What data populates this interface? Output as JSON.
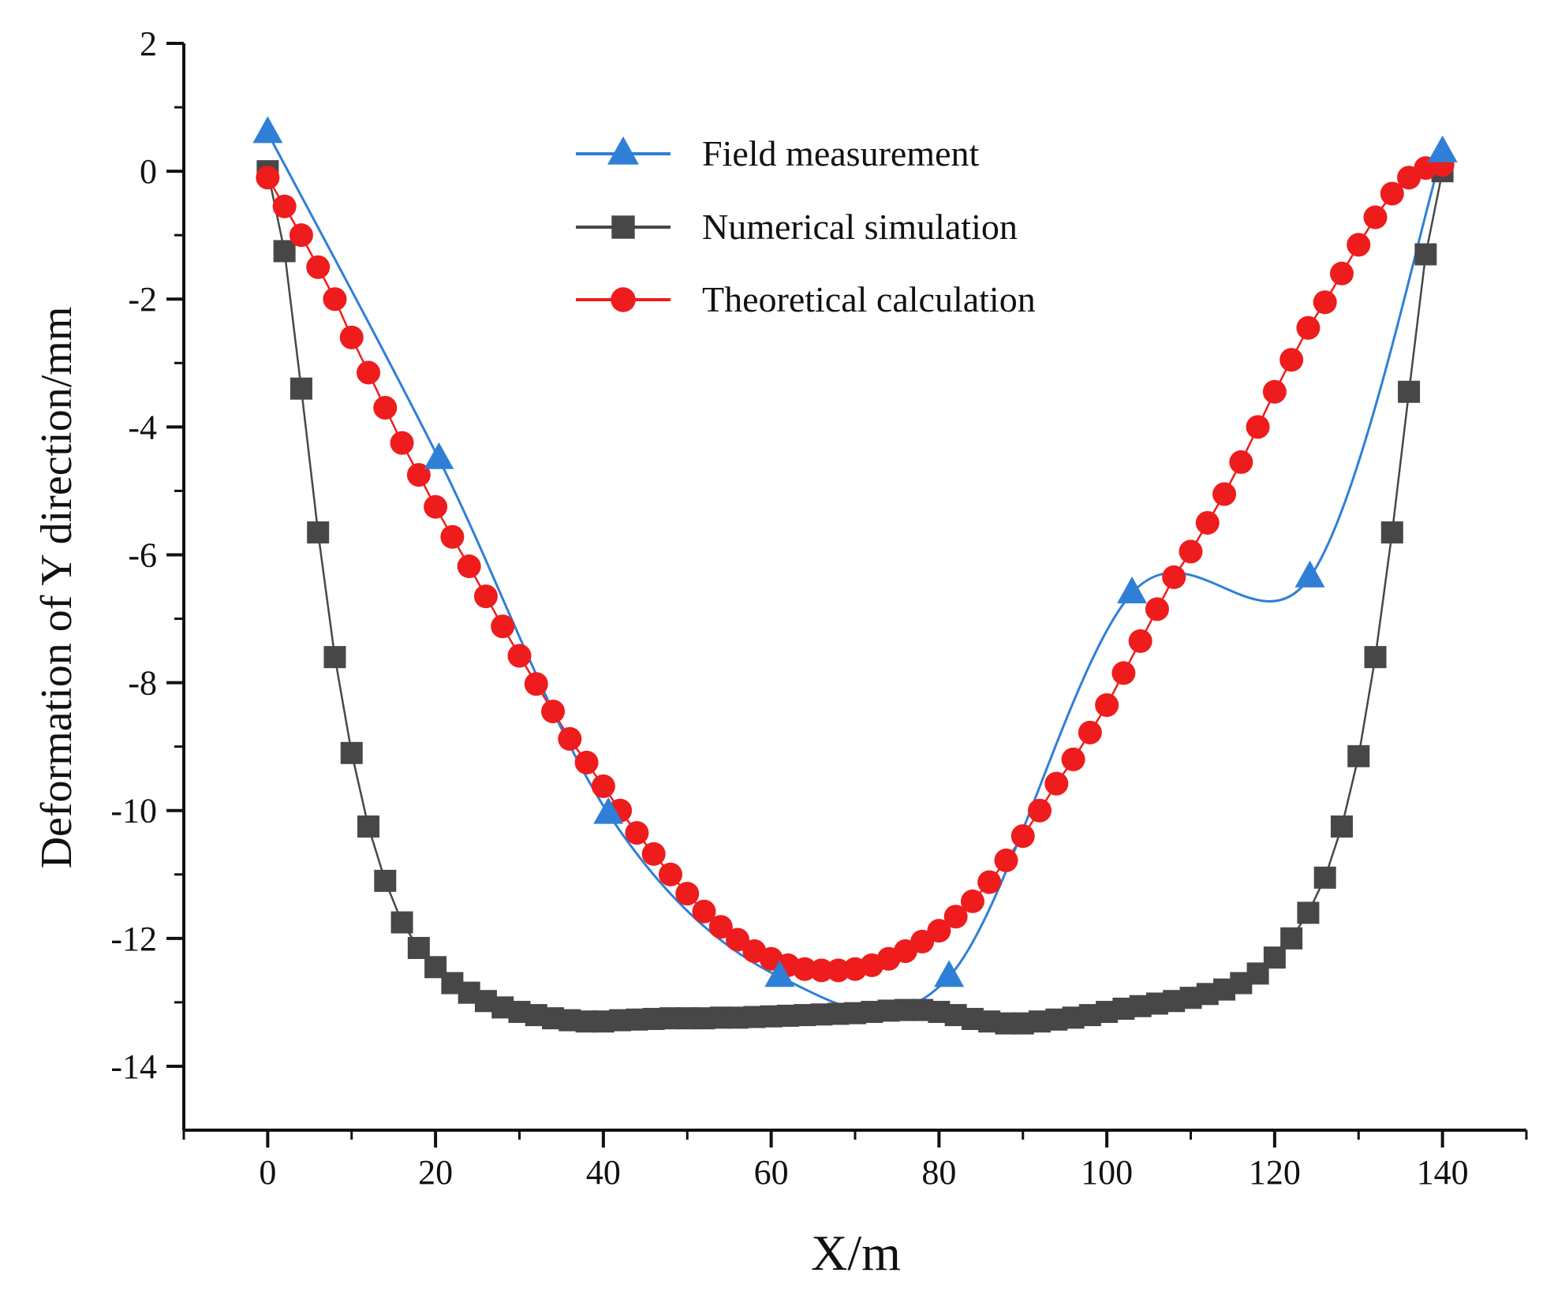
{
  "chart_data": {
    "type": "line",
    "title": "",
    "xlabel": "X/m",
    "ylabel": "Deformation of  Y direction/mm",
    "xlim": [
      -10,
      150
    ],
    "ylim": [
      -15,
      2
    ],
    "xticks": [
      0,
      20,
      40,
      60,
      80,
      100,
      120,
      140
    ],
    "yticks": [
      2,
      0,
      -2,
      -4,
      -6,
      -8,
      -10,
      -12,
      -14
    ],
    "legend_position": "top-center",
    "series": [
      {
        "name": "Field measurement",
        "marker": "triangle",
        "color": "#2f7fd6",
        "smooth": true,
        "x": [
          0,
          20.4,
          40.6,
          61,
          81.2,
          103,
          124.2,
          140
        ],
        "y": [
          0.6,
          -4.5,
          -10.05,
          -12.6,
          -12.6,
          -6.6,
          -6.35,
          0.3
        ]
      },
      {
        "name": "Numerical simulation",
        "marker": "square",
        "color": "#474747",
        "smooth": false,
        "x": [
          0,
          2,
          4,
          6,
          8,
          10,
          12,
          14,
          16,
          18,
          20,
          22,
          24,
          26,
          28,
          30,
          32,
          34,
          36,
          38,
          40,
          42,
          44,
          46,
          48,
          50,
          52,
          54,
          56,
          58,
          60,
          62,
          64,
          66,
          68,
          70,
          72,
          74,
          76,
          78,
          80,
          82,
          84,
          86,
          88,
          90,
          92,
          94,
          96,
          98,
          100,
          102,
          104,
          106,
          108,
          110,
          112,
          114,
          116,
          118,
          120,
          122,
          124,
          126,
          128,
          130,
          132,
          134,
          136,
          138,
          140
        ],
        "y": [
          0,
          -1.25,
          -3.4,
          -5.65,
          -7.6,
          -9.1,
          -10.25,
          -11.1,
          -11.75,
          -12.15,
          -12.45,
          -12.7,
          -12.85,
          -12.98,
          -13.08,
          -13.15,
          -13.2,
          -13.25,
          -13.28,
          -13.3,
          -13.3,
          -13.28,
          -13.27,
          -13.26,
          -13.25,
          -13.25,
          -13.25,
          -13.24,
          -13.24,
          -13.23,
          -13.22,
          -13.21,
          -13.2,
          -13.19,
          -13.18,
          -13.17,
          -13.15,
          -13.13,
          -13.12,
          -13.12,
          -13.15,
          -13.2,
          -13.26,
          -13.3,
          -13.33,
          -13.33,
          -13.3,
          -13.27,
          -13.24,
          -13.2,
          -13.15,
          -13.1,
          -13.06,
          -13.02,
          -12.98,
          -12.93,
          -12.87,
          -12.8,
          -12.7,
          -12.55,
          -12.3,
          -12.0,
          -11.6,
          -11.05,
          -10.25,
          -9.15,
          -7.6,
          -5.65,
          -3.45,
          -1.3,
          0
        ]
      },
      {
        "name": "Theoretical calculation",
        "marker": "circle",
        "color": "#ee1c1c",
        "smooth": false,
        "x": [
          0,
          2,
          4,
          6,
          8,
          10,
          12,
          14,
          16,
          18,
          20,
          22,
          24,
          26,
          28,
          30,
          32,
          34,
          36,
          38,
          40,
          42,
          44,
          46,
          48,
          50,
          52,
          54,
          56,
          58,
          60,
          62,
          64,
          66,
          68,
          70,
          72,
          74,
          76,
          78,
          80,
          82,
          84,
          86,
          88,
          90,
          92,
          94,
          96,
          98,
          100,
          102,
          104,
          106,
          108,
          110,
          112,
          114,
          116,
          118,
          120,
          122,
          124,
          126,
          128,
          130,
          132,
          134,
          136,
          138,
          140
        ],
        "y": [
          -0.1,
          -0.55,
          -1.0,
          -1.5,
          -2.0,
          -2.6,
          -3.15,
          -3.7,
          -4.25,
          -4.75,
          -5.25,
          -5.72,
          -6.18,
          -6.65,
          -7.12,
          -7.58,
          -8.02,
          -8.45,
          -8.88,
          -9.25,
          -9.62,
          -10.0,
          -10.35,
          -10.68,
          -11.0,
          -11.3,
          -11.58,
          -11.82,
          -12.02,
          -12.2,
          -12.32,
          -12.42,
          -12.48,
          -12.5,
          -12.5,
          -12.48,
          -12.42,
          -12.32,
          -12.2,
          -12.05,
          -11.88,
          -11.66,
          -11.42,
          -11.12,
          -10.78,
          -10.4,
          -10.0,
          -9.58,
          -9.2,
          -8.78,
          -8.35,
          -7.85,
          -7.35,
          -6.85,
          -6.35,
          -5.95,
          -5.5,
          -5.05,
          -4.55,
          -4.0,
          -3.45,
          -2.95,
          -2.45,
          -2.05,
          -1.6,
          -1.15,
          -0.72,
          -0.35,
          -0.1,
          0.05,
          0.1
        ]
      }
    ]
  }
}
